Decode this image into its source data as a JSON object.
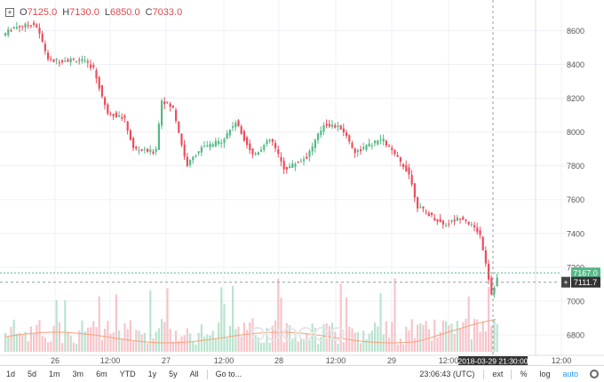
{
  "ohlc": {
    "o_label": "O",
    "o": "7125.0",
    "h_label": "H",
    "h": "7130.0",
    "l_label": "L",
    "l": "6850.0",
    "c_label": "C",
    "c": "7033.0"
  },
  "chart_data": {
    "type": "candlestick",
    "y_ticks": [
      6800,
      7000,
      7200,
      7400,
      7600,
      7800,
      8000,
      8200,
      8400,
      8600
    ],
    "ylim": [
      6700,
      8760
    ],
    "x_ticks": [
      "26",
      "12:00",
      "27",
      "12:00",
      "28",
      "12:00",
      "29",
      "12:00",
      "12:00"
    ],
    "price_label_last": "7167.0",
    "price_label_cursor": "7111.7",
    "crosshair_time": "2018-03-29 21:30:00",
    "last_price": 7167,
    "cursor_price": 7111.7,
    "grid": true,
    "up_color": "#53b987",
    "down_color": "#eb4d5c"
  },
  "toolbar": {
    "intervals": [
      "1d",
      "5d",
      "1m",
      "3m",
      "6m",
      "YTD",
      "1y",
      "5y",
      "All"
    ],
    "goto": "Go to...",
    "clock": "23:06:43 (UTC)",
    "ext": "ext",
    "pct": "%",
    "log": "log",
    "auto": "auto"
  }
}
